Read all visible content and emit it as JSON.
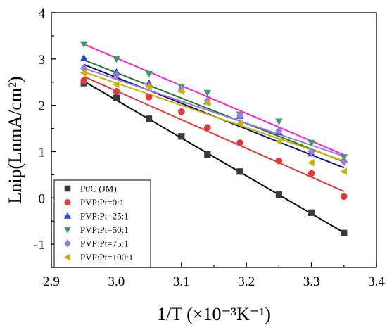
{
  "chart_data": {
    "type": "scatter",
    "title": "",
    "xlabel": "1/T (×10⁻³K⁻¹)",
    "ylabel": "Lnip(LnmA/cm²)",
    "xlim": [
      2.9,
      3.4
    ],
    "ylim": [
      -1.5,
      4
    ],
    "xticks": [
      "2.9",
      "3.0",
      "3.1",
      "3.2",
      "3.3",
      "3.4"
    ],
    "yticks": [
      "-1",
      "0",
      "1",
      "2",
      "3",
      "4"
    ],
    "grid": false,
    "legend_position": "bottom-left",
    "x": [
      2.95,
      3.0,
      3.05,
      3.1,
      3.14,
      3.19,
      3.25,
      3.3,
      3.35
    ],
    "series": [
      {
        "name": "Pt/C (JM)",
        "marker": "square",
        "color": "#3a3a3a",
        "line_color": "#000000",
        "values": [
          2.48,
          2.16,
          1.71,
          1.33,
          0.94,
          0.57,
          0.07,
          -0.32,
          -0.76
        ],
        "fit": [
          2.52,
          -0.75
        ]
      },
      {
        "name": "PVP:Pt=0:1",
        "marker": "circle",
        "color": "#e23a3a",
        "line_color": "#e23a3a",
        "values": [
          2.53,
          2.3,
          2.18,
          1.86,
          1.52,
          1.19,
          0.8,
          0.53,
          0.03
        ],
        "fit": [
          2.62,
          0.14
        ]
      },
      {
        "name": "PVP:Pt=25:1",
        "marker": "triangle-up",
        "color": "#2a3fe0",
        "line_color": "#14147a",
        "values": [
          3.02,
          2.72,
          2.48,
          2.35,
          2.08,
          1.77,
          1.42,
          0.96,
          0.83
        ],
        "fit": [
          2.88,
          0.65
        ]
      },
      {
        "name": "PVP:Pt=50:1",
        "marker": "triangle-down",
        "color": "#3f9a6a",
        "line_color": "#1f7a2a",
        "values": [
          3.32,
          3.0,
          2.68,
          2.4,
          2.27,
          1.8,
          1.65,
          1.19,
          0.88
        ],
        "fit": [
          2.98,
          0.78
        ]
      },
      {
        "name": "PVP:Pt=75:1",
        "marker": "diamond",
        "color": "#9a7ae0",
        "line_color": "#9a7ae0",
        "values": [
          2.8,
          2.66,
          2.42,
          2.35,
          2.1,
          1.78,
          1.45,
          1.0,
          0.78
        ],
        "fit": [
          2.8,
          0.9
        ]
      },
      {
        "name": "PVP:Pt=100:1",
        "marker": "triangle-left",
        "color": "#c8b400",
        "line_color": "#c8b400",
        "values": [
          2.7,
          2.45,
          2.4,
          2.3,
          2.05,
          1.6,
          1.22,
          0.76,
          0.57
        ],
        "fit": [
          2.72,
          0.8
        ]
      }
    ],
    "trend_lines": [
      {
        "color": "#ff1fd0",
        "fit": [
          3.32,
          0.93
        ]
      }
    ]
  }
}
